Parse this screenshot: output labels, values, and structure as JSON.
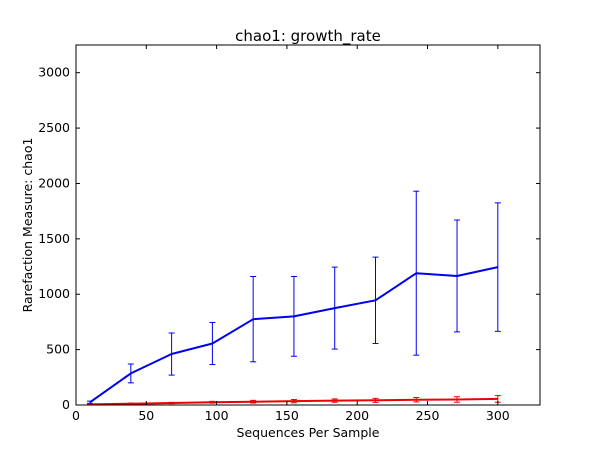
{
  "chart_data": {
    "type": "line",
    "title": "chao1: growth_rate",
    "xlabel": "Sequences Per Sample",
    "ylabel": "Rarefaction Measure: chao1",
    "xlim": [
      0,
      330
    ],
    "ylim": [
      0,
      3250
    ],
    "xticks": [
      0,
      50,
      100,
      150,
      200,
      250,
      300
    ],
    "yticks": [
      0,
      500,
      1000,
      1500,
      2000,
      2500,
      3000
    ],
    "grid": false,
    "legend": "none",
    "series": [
      {
        "color": "#0000ee",
        "x": [
          10,
          39,
          68,
          97,
          126,
          155,
          184,
          213,
          242,
          271,
          300
        ],
        "y": [
          25,
          285,
          460,
          555,
          775,
          800,
          875,
          945,
          1190,
          1165,
          1245
        ],
        "err": [
          10,
          85,
          190,
          190,
          385,
          360,
          370,
          390,
          740,
          505,
          580
        ]
      },
      {
        "color": "#ee0000",
        "x": [
          10,
          39,
          68,
          97,
          126,
          155,
          184,
          213,
          242,
          271,
          300
        ],
        "y": [
          5,
          12,
          18,
          25,
          30,
          35,
          40,
          42,
          48,
          50,
          55
        ],
        "err": [
          3,
          5,
          6,
          8,
          12,
          15,
          15,
          18,
          20,
          25,
          30
        ]
      }
    ]
  }
}
